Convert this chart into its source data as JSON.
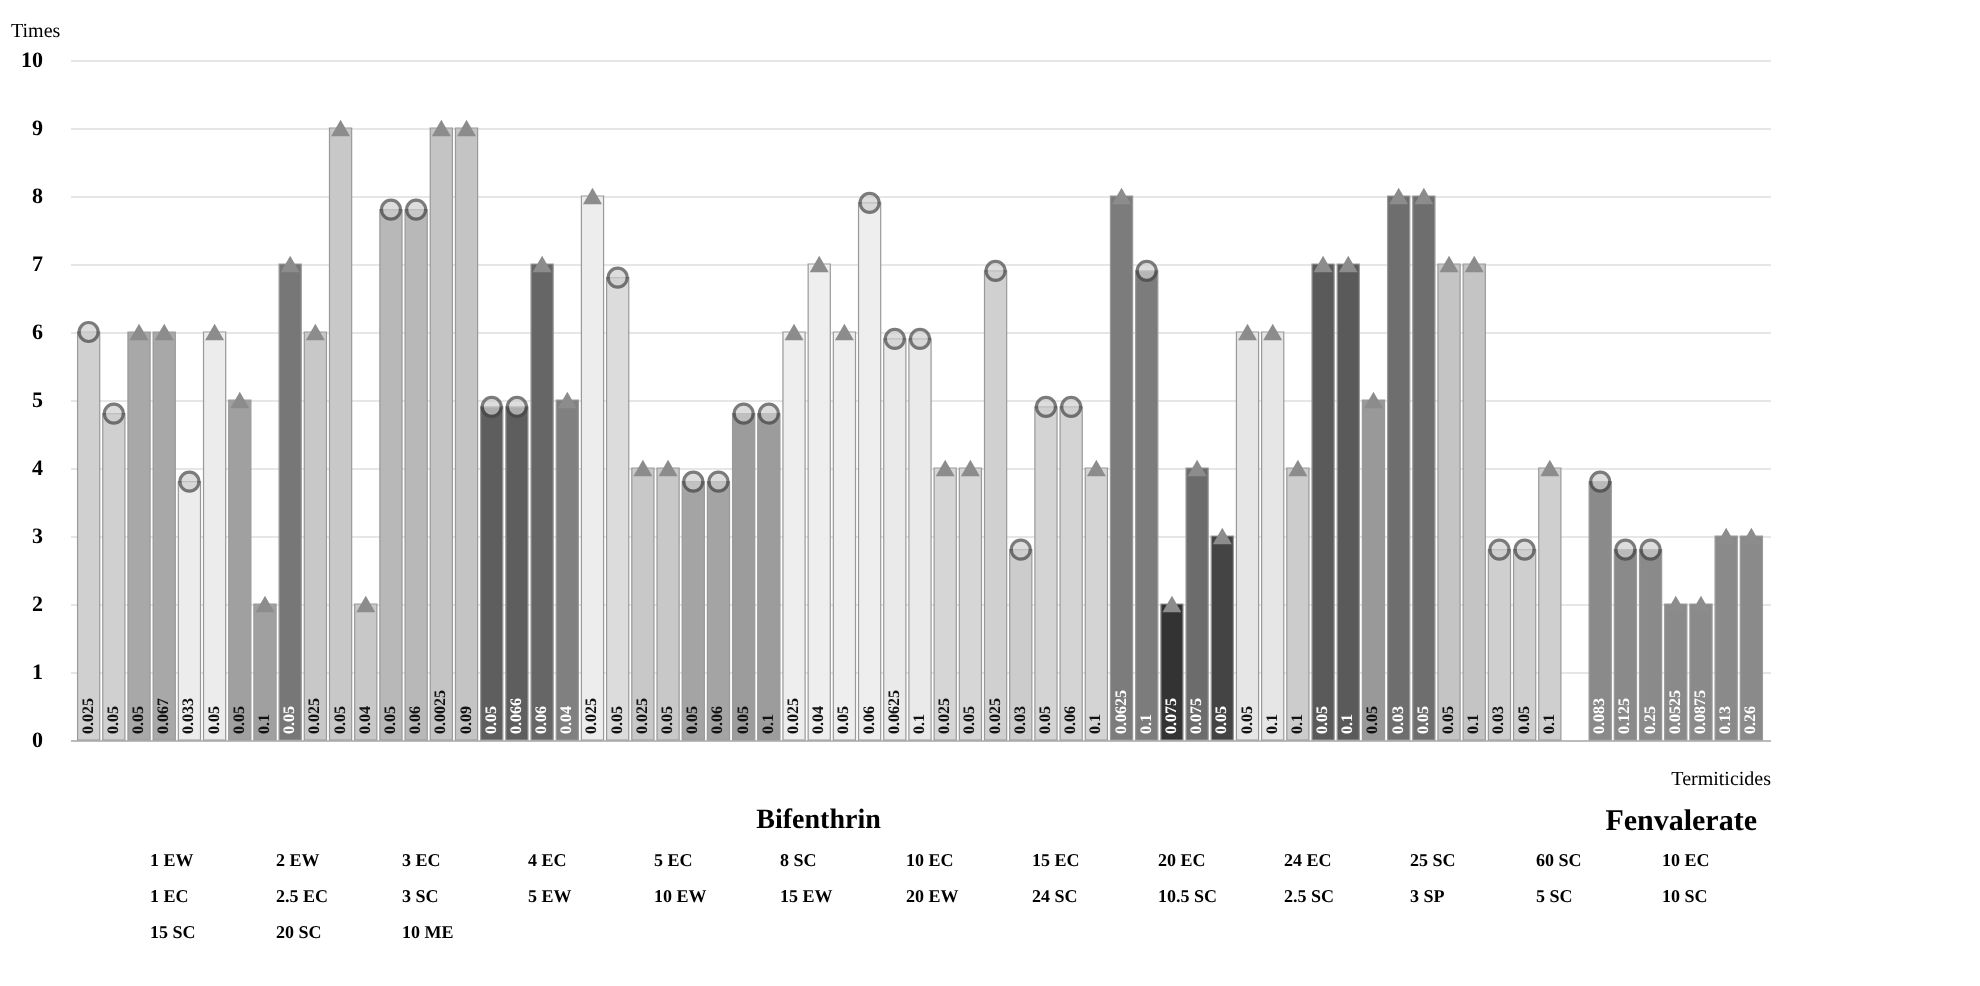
{
  "chart_data": {
    "type": "bar",
    "ylabel": "Times",
    "xlabel": "Termiticides",
    "categories": [
      "0.025",
      "0.05",
      "0.05",
      "0.067",
      "0.033",
      "0.05",
      "0.05",
      "0.1",
      "0.05",
      "0.025",
      "0.05",
      "0.04",
      "0.05",
      "0.06",
      "0.0025",
      "0.09",
      "0.05",
      "0.066",
      "0.06",
      "0.04",
      "0.025",
      "0.05",
      "0.025",
      "0.05",
      "0.05",
      "0.06",
      "0.05",
      "0.1",
      "0.025",
      "0.04",
      "0.05",
      "0.06",
      "0.0625",
      "0.1",
      "0.025",
      "0.05",
      "0.025",
      "0.03",
      "0.05",
      "0.06",
      "0.1",
      "0.0625",
      "0.1",
      "0.075",
      "0.075",
      "0.05",
      "0.05",
      "0.1",
      "0.1",
      "0.05",
      "0.1",
      "0.05",
      "0.03",
      "0.05",
      "0.05",
      "0.1",
      "0.03",
      "0.05",
      "0.1",
      null,
      "0.083",
      "0.125",
      "0.25",
      "0.0525",
      "0.0875",
      "0.13",
      "0.26"
    ],
    "values": [
      6,
      4.8,
      6,
      6,
      3.8,
      6,
      5,
      2,
      7,
      6,
      9,
      2,
      7.8,
      7.8,
      9,
      9,
      4.9,
      4.9,
      7,
      5,
      8,
      6.8,
      4,
      4,
      3.8,
      3.8,
      4.8,
      4.8,
      6,
      7,
      6,
      7.9,
      5.9,
      5.9,
      4,
      4,
      6.9,
      2.8,
      4.9,
      4.9,
      4,
      8,
      6.9,
      2,
      4,
      3,
      6,
      6,
      4,
      7,
      7,
      5,
      8,
      8,
      7,
      7,
      2.8,
      2.8,
      4,
      null,
      3.8,
      2.8,
      2.8,
      2,
      2,
      3,
      3
    ],
    "colors": [
      "#d0d0d0",
      "#d0d0d0",
      "#a8a8a8",
      "#a8a8a8",
      "#ececec",
      "#ececec",
      "#a0a0a0",
      "#a0a0a0",
      "#777777",
      "#c8c8c8",
      "#c8c8c8",
      "#c8c8c8",
      "#b8b8b8",
      "#b8b8b8",
      "#c4c4c4",
      "#c4c4c4",
      "#5e5e5e",
      "#5e5e5e",
      "#666666",
      "#808080",
      "#ededed",
      "#dcdcdc",
      "#c8c8c8",
      "#c8c8c8",
      "#a4a4a4",
      "#a4a4a4",
      "#9c9c9c",
      "#9c9c9c",
      "#eeeeee",
      "#eeeeee",
      "#eeeeee",
      "#eeeeee",
      "#eaeaea",
      "#eaeaea",
      "#d6d6d6",
      "#d6d6d6",
      "#d0d0d0",
      "#cccccc",
      "#d4d4d4",
      "#d4d4d4",
      "#d4d4d4",
      "#7c7c7c",
      "#7c7c7c",
      "#333333",
      "#6c6c6c",
      "#444444",
      "#e6e6e6",
      "#e6e6e6",
      "#cccccc",
      "#5a5a5a",
      "#5a5a5a",
      "#999999",
      "#6e6e6e",
      "#6e6e6e",
      "#c4c4c4",
      "#c4c4c4",
      "#cfcfcf",
      "#cfcfcf",
      "#cfcfcf",
      "#ffffff",
      "#8a8a8a",
      "#8a8a8a",
      "#8a8a8a",
      "#8a8a8a",
      "#8a8a8a",
      "#8a8a8a",
      "#8a8a8a"
    ],
    "series": [
      {
        "type": "scatter",
        "marker": "triangle",
        "color": "#8c8c8c",
        "values": [
          null,
          null,
          6,
          6,
          null,
          6,
          5,
          2,
          7,
          6,
          9,
          2,
          null,
          null,
          9,
          9,
          null,
          null,
          7,
          5,
          8,
          null,
          4,
          4,
          null,
          null,
          null,
          null,
          6,
          7,
          6,
          null,
          null,
          null,
          4,
          4,
          null,
          null,
          null,
          null,
          4,
          8,
          null,
          2,
          4,
          3,
          6,
          6,
          4,
          7,
          7,
          5,
          8,
          8,
          7,
          7,
          null,
          null,
          4,
          null,
          null,
          null,
          null,
          2,
          2,
          3,
          3
        ]
      },
      {
        "type": "scatter",
        "marker": "circle",
        "color": "#444444",
        "values": [
          6,
          4.8,
          null,
          null,
          3.8,
          null,
          null,
          null,
          null,
          null,
          null,
          null,
          7.8,
          7.8,
          null,
          null,
          4.9,
          4.9,
          null,
          null,
          null,
          6.8,
          null,
          null,
          3.8,
          3.8,
          4.8,
          4.8,
          null,
          null,
          null,
          7.9,
          5.9,
          5.9,
          null,
          null,
          6.9,
          2.8,
          4.9,
          4.9,
          null,
          null,
          6.9,
          null,
          null,
          null,
          null,
          null,
          null,
          null,
          null,
          null,
          null,
          null,
          null,
          null,
          2.8,
          2.8,
          null,
          null,
          3.8,
          2.8,
          2.8,
          null,
          null,
          null,
          null
        ]
      }
    ],
    "ylim": [
      0,
      10
    ],
    "yticks": [
      0,
      1,
      2,
      3,
      4,
      5,
      6,
      7,
      8,
      9,
      10
    ],
    "grid": "y",
    "annotations": [
      "Bifenthrin",
      "Fenvalerate",
      "1 EW",
      "2 EW",
      "3 EC",
      "4 EC",
      "5 EC",
      "8 SC",
      "10 EC",
      "15 EC",
      "20 EC",
      "24 EC",
      "25 SC",
      "60 SC",
      "10 EC",
      "1 EC",
      "2.5 EC",
      "3 SC",
      "5 EW",
      "10 EW",
      "15 EW",
      "20 EW",
      "24 SC",
      "10.5 SC",
      "2.5 SC",
      "3 SP",
      "5 SC",
      "10 SC",
      "15 SC",
      "20 SC",
      "10 ME"
    ]
  }
}
